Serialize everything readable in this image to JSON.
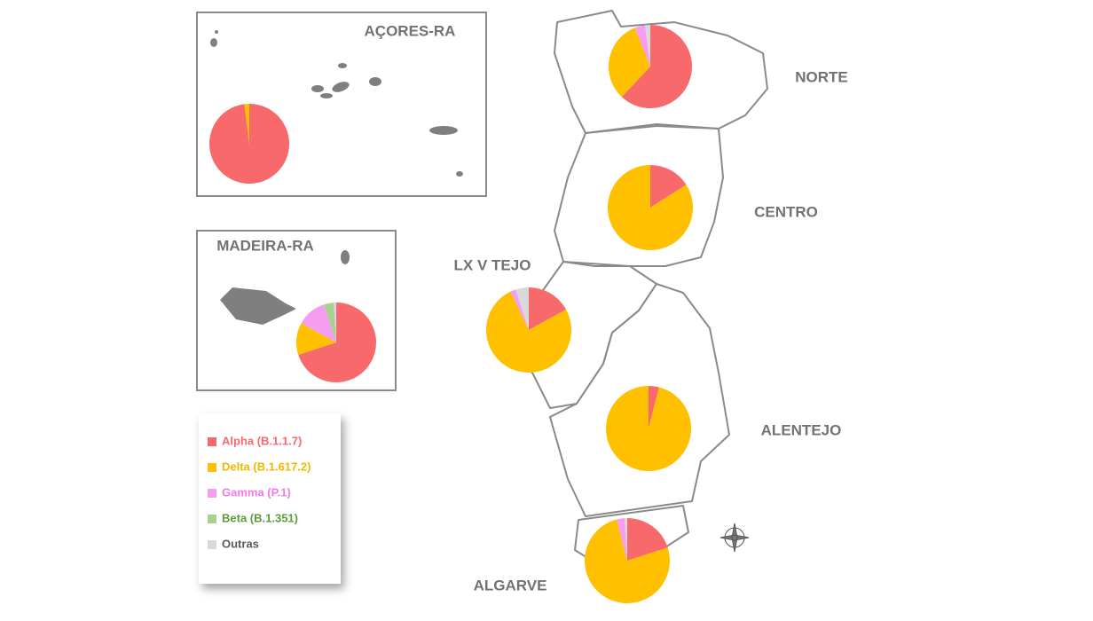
{
  "title_boxes": [
    {
      "name": "AÇORES-RA"
    },
    {
      "name": "MADEIRA-RA"
    }
  ],
  "regions": [
    {
      "name": "AÇORES-RA",
      "values": [
        98,
        2,
        0,
        0,
        0
      ]
    },
    {
      "name": "MADEIRA-RA",
      "values": [
        70,
        13,
        12,
        4,
        1
      ]
    },
    {
      "name": "NORTE",
      "values": [
        62,
        32,
        4,
        0,
        2
      ]
    },
    {
      "name": "CENTRO",
      "values": [
        16,
        84,
        0,
        0,
        0
      ]
    },
    {
      "name": "LX V TEJO",
      "values": [
        17,
        76,
        2,
        0,
        5
      ]
    },
    {
      "name": "ALENTEJO",
      "values": [
        4,
        96,
        0,
        0,
        0
      ]
    },
    {
      "name": "ALGARVE",
      "values": [
        20,
        76,
        3,
        0,
        1
      ]
    }
  ],
  "legend": [
    {
      "name": "Alpha (B.1.1.7)",
      "color": "#f8696b",
      "label_color": "#f8696b"
    },
    {
      "name": "Delta (B.1.617.2)",
      "color": "#ffc000",
      "label_color": "#f5b800"
    },
    {
      "name": "Gamma (P.1)",
      "color": "#f59df0",
      "label_color": "#f07be8"
    },
    {
      "name": "Beta (B.1.351)",
      "color": "#a9d08e",
      "label_color": "#5a9e3a"
    },
    {
      "name": "Outras",
      "color": "#d9d9d9",
      "label_color": "#595959"
    }
  ]
}
